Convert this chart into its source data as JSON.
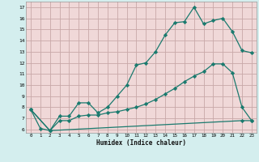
{
  "xlabel": "Humidex (Indice chaleur)",
  "bg_outer": "#d4eeee",
  "bg_plot": "#f0d8d8",
  "grid_color": "#c8a8a8",
  "line_color": "#1a7a6e",
  "xlim_min": -0.5,
  "xlim_max": 23.5,
  "ylim_min": 5.7,
  "ylim_max": 17.5,
  "x_ticks": [
    0,
    1,
    2,
    3,
    4,
    5,
    6,
    7,
    8,
    9,
    10,
    11,
    12,
    13,
    14,
    15,
    16,
    17,
    18,
    19,
    20,
    21,
    22,
    23
  ],
  "y_ticks": [
    6,
    7,
    8,
    9,
    10,
    11,
    12,
    13,
    14,
    15,
    16,
    17
  ],
  "line1_x": [
    0,
    1,
    2,
    3,
    4,
    5,
    6,
    7,
    8,
    9,
    10,
    11,
    12,
    13,
    14,
    15,
    16,
    17,
    18,
    19,
    20,
    21,
    22,
    23
  ],
  "line1_y": [
    7.8,
    6.1,
    5.9,
    7.2,
    7.2,
    8.4,
    8.4,
    7.5,
    8.0,
    9.0,
    10.0,
    11.8,
    12.0,
    13.0,
    14.5,
    15.6,
    15.7,
    17.0,
    15.5,
    15.8,
    16.0,
    14.8,
    13.1,
    12.9
  ],
  "line2_x": [
    0,
    2,
    3,
    4,
    5,
    6,
    7,
    8,
    9,
    10,
    11,
    12,
    13,
    14,
    15,
    16,
    17,
    18,
    19,
    20,
    21,
    22,
    23
  ],
  "line2_y": [
    7.8,
    5.9,
    6.8,
    6.8,
    7.2,
    7.3,
    7.3,
    7.5,
    7.6,
    7.8,
    8.0,
    8.3,
    8.7,
    9.2,
    9.7,
    10.3,
    10.8,
    11.2,
    11.9,
    11.9,
    11.1,
    8.0,
    6.8
  ],
  "line3_x": [
    0,
    2,
    22,
    23
  ],
  "line3_y": [
    7.8,
    5.9,
    6.8,
    6.8
  ]
}
